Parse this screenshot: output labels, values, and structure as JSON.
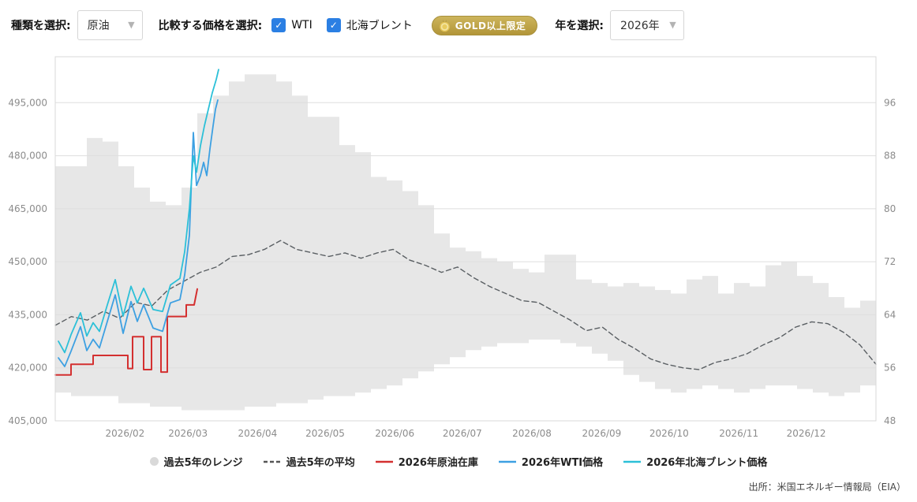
{
  "toolbar": {
    "type_label": "種類を選択:",
    "type_value": "原油",
    "compare_label": "比較する価格を選択:",
    "checkboxes": [
      {
        "label": "WTI",
        "checked": true
      },
      {
        "label": "北海ブレント",
        "checked": true
      }
    ],
    "gold_badge_label": "GOLD以上限定",
    "year_label": "年を選択:",
    "year_value": "2026年"
  },
  "legend": [
    {
      "label": "過去5年のレンジ",
      "type": "band",
      "color": "#d9d9d9"
    },
    {
      "label": "過去5年の平均",
      "type": "dashed",
      "color": "#555555"
    },
    {
      "label": "2026年原油在庫",
      "type": "line",
      "color": "#d43030"
    },
    {
      "label": "2026年WTI価格",
      "type": "line",
      "color": "#3da0e2"
    },
    {
      "label": "2026年北海ブレント価格",
      "type": "line",
      "color": "#2cc0d8"
    }
  ],
  "source": "出所：米国エネルギー情報局（EIA）",
  "chart_data": {
    "type": "line",
    "title": "",
    "xlabel": "",
    "ylabel_left": "",
    "ylabel_right": "",
    "grid": true,
    "legend_position": "bottom",
    "y_left": {
      "min": 405000,
      "max": 508000,
      "ticks": [
        405000,
        420000,
        435000,
        450000,
        465000,
        480000,
        495000
      ]
    },
    "y_right": {
      "min": 48,
      "ticks": [
        48,
        56,
        64,
        72,
        80,
        88,
        96
      ],
      "left_equiv_min": 405000,
      "left_per_unit": 1875
    },
    "x_axis": {
      "weeks_total": 52,
      "ticks": [
        {
          "label": "2026/02",
          "week": 4.42
        },
        {
          "label": "2026/03",
          "week": 8.41
        },
        {
          "label": "2026/04",
          "week": 12.82
        },
        {
          "label": "2026/05",
          "week": 17.1
        },
        {
          "label": "2026/06",
          "week": 21.51
        },
        {
          "label": "2026/07",
          "week": 25.79
        },
        {
          "label": "2026/08",
          "week": 30.2
        },
        {
          "label": "2026/09",
          "week": 34.62
        },
        {
          "label": "2026/10",
          "week": 38.89
        },
        {
          "label": "2026/11",
          "week": 43.31
        },
        {
          "label": "2026/12",
          "week": 47.58
        }
      ]
    },
    "series": [
      {
        "name": "過去5年のレンジ",
        "type": "band",
        "axis": "left",
        "color": "rgba(222,222,222,0.72)",
        "upper": [
          477000,
          477000,
          485000,
          484000,
          477000,
          471000,
          467000,
          466000,
          471000,
          492000,
          497000,
          501000,
          503000,
          503000,
          501000,
          497000,
          491000,
          491000,
          483000,
          481000,
          474000,
          473000,
          470000,
          466000,
          458000,
          454000,
          453000,
          451000,
          450000,
          448000,
          447000,
          452000,
          452000,
          445000,
          444000,
          443000,
          444000,
          443000,
          442000,
          441000,
          445000,
          446000,
          441000,
          444000,
          443000,
          449000,
          450000,
          446000,
          444000,
          440000,
          437000,
          439000
        ],
        "lower": [
          413000,
          412000,
          412000,
          412000,
          410000,
          410000,
          409000,
          409000,
          408000,
          408000,
          408000,
          408000,
          409000,
          409000,
          410000,
          410000,
          411000,
          412000,
          412000,
          413000,
          414000,
          415000,
          417000,
          419000,
          421000,
          423000,
          425000,
          426000,
          427000,
          427000,
          428000,
          428000,
          427000,
          426000,
          424000,
          422000,
          418000,
          416000,
          414000,
          413000,
          414000,
          415000,
          414000,
          413000,
          414000,
          415000,
          415000,
          414000,
          413000,
          412000,
          413000,
          415000
        ]
      },
      {
        "name": "過去5年の平均",
        "type": "line",
        "axis": "left",
        "color": "#5a5f63",
        "dash": "6 4",
        "width": 1.4,
        "values": [
          432000,
          434500,
          433500,
          436000,
          434000,
          438500,
          437500,
          442000,
          444500,
          447000,
          448500,
          451500,
          452000,
          453500,
          456000,
          453500,
          452500,
          451500,
          452500,
          451000,
          452500,
          453500,
          450500,
          449000,
          447000,
          448500,
          445500,
          443000,
          441000,
          439000,
          438500,
          436000,
          433500,
          430500,
          431500,
          428000,
          425500,
          422500,
          421000,
          420000,
          419500,
          421500,
          422500,
          424000,
          426500,
          428500,
          431500,
          433000,
          432500,
          430000,
          426500,
          421000
        ]
      },
      {
        "name": "2026年原油在庫",
        "type": "line",
        "axis": "left",
        "color": "#d43030",
        "width": 2,
        "points": [
          [
            0,
            418000
          ],
          [
            1,
            418000
          ],
          [
            1,
            421000
          ],
          [
            2.4,
            421000
          ],
          [
            2.4,
            423500
          ],
          [
            4.6,
            423500
          ],
          [
            4.6,
            419800
          ],
          [
            4.9,
            419800
          ],
          [
            4.9,
            428800
          ],
          [
            5.6,
            428800
          ],
          [
            5.6,
            419500
          ],
          [
            6.1,
            419500
          ],
          [
            6.1,
            428800
          ],
          [
            6.7,
            428800
          ],
          [
            6.7,
            418800
          ],
          [
            7.1,
            418800
          ],
          [
            7.1,
            434500
          ],
          [
            8.3,
            434500
          ],
          [
            8.3,
            437800
          ],
          [
            8.8,
            437800
          ],
          [
            9.0,
            442300
          ]
        ]
      },
      {
        "name": "2026年WTI価格",
        "type": "line",
        "axis": "right",
        "color": "#3da0e2",
        "width": 1.8,
        "points": [
          [
            0.2,
            57.5
          ],
          [
            0.6,
            56.2
          ],
          [
            1.0,
            58.5
          ],
          [
            1.6,
            62.2
          ],
          [
            2.0,
            58.6
          ],
          [
            2.4,
            60.3
          ],
          [
            2.8,
            59.0
          ],
          [
            3.3,
            63.0
          ],
          [
            3.8,
            67.0
          ],
          [
            4.3,
            61.2
          ],
          [
            4.8,
            66.0
          ],
          [
            5.2,
            63.0
          ],
          [
            5.6,
            65.5
          ],
          [
            6.2,
            62.0
          ],
          [
            6.8,
            61.5
          ],
          [
            7.3,
            65.8
          ],
          [
            7.9,
            66.3
          ],
          [
            8.2,
            70.0
          ],
          [
            8.5,
            76.0
          ],
          [
            8.75,
            91.5
          ],
          [
            8.95,
            83.5
          ],
          [
            9.2,
            85.0
          ],
          [
            9.4,
            87.0
          ],
          [
            9.6,
            85.0
          ],
          [
            9.8,
            89.0
          ],
          [
            10.0,
            92.5
          ],
          [
            10.15,
            95.0
          ],
          [
            10.3,
            96.4
          ]
        ]
      },
      {
        "name": "2026年北海ブレント価格",
        "type": "line",
        "axis": "right",
        "color": "#2cc0d8",
        "width": 1.8,
        "points": [
          [
            0.2,
            60.0
          ],
          [
            0.6,
            58.3
          ],
          [
            1.0,
            61.0
          ],
          [
            1.6,
            64.3
          ],
          [
            2.0,
            60.8
          ],
          [
            2.4,
            62.8
          ],
          [
            2.8,
            61.5
          ],
          [
            3.3,
            65.5
          ],
          [
            3.8,
            69.3
          ],
          [
            4.3,
            63.8
          ],
          [
            4.8,
            68.3
          ],
          [
            5.2,
            65.8
          ],
          [
            5.6,
            68.0
          ],
          [
            6.2,
            64.8
          ],
          [
            6.8,
            64.5
          ],
          [
            7.3,
            68.5
          ],
          [
            7.9,
            69.5
          ],
          [
            8.2,
            73.5
          ],
          [
            8.5,
            80.0
          ],
          [
            8.75,
            88.0
          ],
          [
            8.95,
            85.5
          ],
          [
            9.2,
            89.5
          ],
          [
            9.45,
            92.5
          ],
          [
            9.7,
            95.0
          ],
          [
            9.95,
            97.5
          ],
          [
            10.2,
            99.5
          ],
          [
            10.35,
            101.0
          ]
        ]
      }
    ]
  }
}
